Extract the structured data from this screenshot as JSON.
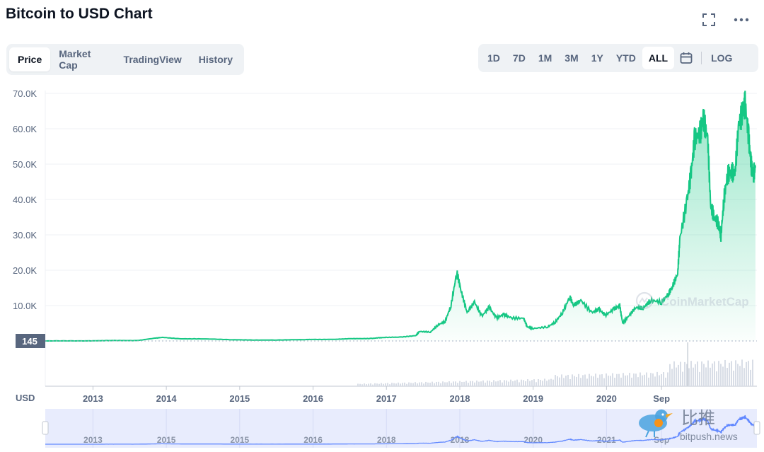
{
  "title": "Bitcoin to USD Chart",
  "tabs": [
    "Price",
    "Market Cap",
    "TradingView",
    "History"
  ],
  "active_tab": "Price",
  "ranges": [
    "1D",
    "7D",
    "1M",
    "3M",
    "1Y",
    "YTD",
    "ALL"
  ],
  "active_range": "ALL",
  "log_label": "LOG",
  "icons": {
    "fullscreen": "fullscreen-icon",
    "more": "more-dots-icon",
    "calendar": "calendar-icon"
  },
  "watermark": "CoinMarketCap",
  "watermark2": {
    "cn": "比推",
    "en": "bitpush.news"
  },
  "price_tag": "145",
  "colors": {
    "line": "#16c784",
    "fill": "#16c784",
    "nav_fill": "#e8ecfd",
    "nav_line": "#6188ff"
  },
  "chart_data": {
    "type": "area",
    "currency_label": "USD",
    "y_ticks": [
      "70.0K",
      "60.0K",
      "50.0K",
      "40.0K",
      "30.0K",
      "20.0K",
      "10.0K"
    ],
    "ylim": [
      0,
      70000
    ],
    "x_ticks": [
      "2013",
      "2014",
      "2015",
      "2016",
      "2017",
      "2018",
      "2019",
      "2020",
      "Sep"
    ],
    "navigator_ticks": [
      "2013",
      "2015",
      "2015",
      "2016",
      "2018",
      "2018",
      "2020",
      "2021",
      "Sep"
    ],
    "series": [
      {
        "values": [
          [
            2012.35,
            5
          ],
          [
            2012.85,
            11
          ],
          [
            2012.95,
            13
          ],
          [
            2013.2,
            90
          ],
          [
            2013.3,
            120
          ],
          [
            2013.6,
            100
          ],
          [
            2013.85,
            800
          ],
          [
            2013.95,
            1000
          ],
          [
            2014.2,
            600
          ],
          [
            2014.5,
            600
          ],
          [
            2014.9,
            350
          ],
          [
            2015.2,
            250
          ],
          [
            2015.5,
            250
          ],
          [
            2015.9,
            400
          ],
          [
            2016.0,
            430
          ],
          [
            2016.3,
            450
          ],
          [
            2016.5,
            650
          ],
          [
            2016.6,
            650
          ],
          [
            2016.8,
            700
          ],
          [
            2016.9,
            900
          ],
          [
            2017.0,
            1000
          ],
          [
            2017.2,
            1100
          ],
          [
            2017.4,
            1500
          ],
          [
            2017.45,
            2700
          ],
          [
            2017.6,
            2500
          ],
          [
            2017.7,
            4500
          ],
          [
            2017.8,
            5500
          ],
          [
            2017.88,
            10000
          ],
          [
            2017.96,
            19500
          ],
          [
            2018.02,
            14000
          ],
          [
            2018.1,
            8000
          ],
          [
            2018.2,
            11000
          ],
          [
            2018.3,
            7000
          ],
          [
            2018.4,
            9500
          ],
          [
            2018.5,
            6500
          ],
          [
            2018.6,
            7500
          ],
          [
            2018.7,
            6500
          ],
          [
            2018.87,
            6400
          ],
          [
            2018.92,
            4000
          ],
          [
            2019.0,
            3500
          ],
          [
            2019.2,
            4000
          ],
          [
            2019.3,
            5300
          ],
          [
            2019.4,
            8000
          ],
          [
            2019.5,
            12500
          ],
          [
            2019.55,
            10000
          ],
          [
            2019.65,
            11500
          ],
          [
            2019.8,
            8000
          ],
          [
            2019.9,
            9000
          ],
          [
            2019.98,
            7200
          ],
          [
            2020.1,
            9000
          ],
          [
            2020.18,
            10000
          ],
          [
            2020.22,
            5000
          ],
          [
            2020.3,
            7000
          ],
          [
            2020.4,
            9500
          ],
          [
            2020.5,
            9300
          ],
          [
            2020.6,
            11500
          ],
          [
            2020.75,
            11000
          ],
          [
            2020.85,
            13500
          ],
          [
            2020.9,
            15500
          ],
          [
            2020.97,
            19000
          ],
          [
            2021.0,
            29000
          ],
          [
            2021.1,
            40000
          ],
          [
            2021.15,
            47000
          ],
          [
            2021.2,
            57000
          ],
          [
            2021.28,
            59000
          ],
          [
            2021.32,
            63000
          ],
          [
            2021.38,
            57000
          ],
          [
            2021.42,
            38000
          ],
          [
            2021.47,
            35000
          ],
          [
            2021.53,
            33000
          ],
          [
            2021.56,
            29800
          ],
          [
            2021.6,
            40000
          ],
          [
            2021.65,
            47000
          ],
          [
            2021.7,
            48000
          ],
          [
            2021.75,
            47000
          ],
          [
            2021.8,
            61000
          ],
          [
            2021.86,
            65000
          ],
          [
            2021.89,
            67000
          ],
          [
            2021.94,
            57000
          ],
          [
            2021.97,
            50000
          ],
          [
            2022.0,
            47000
          ],
          [
            2022.03,
            49000
          ]
        ]
      }
    ]
  }
}
